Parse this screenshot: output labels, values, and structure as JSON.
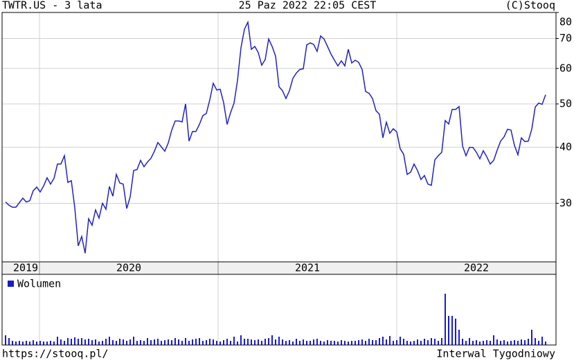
{
  "chart_data": [
    {
      "type": "line",
      "title": "TWTR.US - 3 lata",
      "subtitle": "25 Paz 2022 22:05 CEST",
      "source": "(C)Stooq",
      "categories": [
        null,
        null,
        null,
        null,
        null,
        null,
        null,
        null,
        null,
        null,
        null,
        null,
        null,
        null,
        null,
        null,
        null,
        null,
        null,
        null,
        null,
        null,
        null,
        null,
        null,
        null,
        null,
        null,
        null,
        null,
        null,
        null,
        null,
        null,
        null,
        null,
        null,
        null,
        null,
        null,
        null,
        null,
        null,
        null,
        null,
        null,
        null,
        null,
        null,
        null,
        null,
        null,
        null,
        null,
        null,
        null,
        null,
        null,
        null,
        null,
        null,
        null,
        null,
        null,
        null,
        null,
        null,
        null,
        null,
        null,
        null,
        null,
        null,
        null,
        null,
        null,
        null,
        null,
        null,
        null,
        null,
        null,
        null,
        null,
        null,
        null,
        null,
        null,
        null,
        null,
        null,
        null,
        null,
        null,
        null,
        null,
        null,
        null,
        null,
        null,
        null,
        null,
        null,
        null,
        null,
        null,
        null,
        null,
        null,
        null,
        null,
        null,
        null,
        null,
        null,
        null,
        null,
        null,
        null,
        null,
        null,
        null,
        null,
        null,
        null,
        null,
        null,
        null,
        null,
        null,
        null,
        null,
        null,
        null,
        null,
        null,
        null,
        null,
        null,
        null,
        null,
        null,
        null,
        null,
        null,
        null,
        null,
        null,
        null,
        null,
        null,
        null,
        null,
        null,
        null,
        null,
        null
      ],
      "x_labels": [
        "2019",
        "2020",
        "2021",
        "2022"
      ],
      "values": [
        30.2,
        29.7,
        29.4,
        29.4,
        30.1,
        30.8,
        30.2,
        30.4,
        32.0,
        32.6,
        31.8,
        32.8,
        34.2,
        33.1,
        34.1,
        36.7,
        36.7,
        38.3,
        33.4,
        33.7,
        29.3,
        24.1,
        25.3,
        23.2,
        27.7,
        26.8,
        29.0,
        27.8,
        30.0,
        29.1,
        32.7,
        31.1,
        34.8,
        33.3,
        33.1,
        29.2,
        31.0,
        35.5,
        35.7,
        37.4,
        36.2,
        37.1,
        37.8,
        39.2,
        41.0,
        40.1,
        39.2,
        40.9,
        43.7,
        45.8,
        45.8,
        45.6,
        50.0,
        41.3,
        43.4,
        43.4,
        45.0,
        47.1,
        47.6,
        51.1,
        55.6,
        53.7,
        53.9,
        50.3,
        45.0,
        47.8,
        50.2,
        56.4,
        66.7,
        73.4,
        76.1,
        66.2,
        67.2,
        65.1,
        61.0,
        62.8,
        69.8,
        67.2,
        63.9,
        54.6,
        53.5,
        51.4,
        53.5,
        57.0,
        58.6,
        59.7,
        59.9,
        67.7,
        68.4,
        67.9,
        65.5,
        70.9,
        69.8,
        67.2,
        64.6,
        62.6,
        60.8,
        62.4,
        60.8,
        66.2,
        61.7,
        62.6,
        61.9,
        59.7,
        53.3,
        52.8,
        51.4,
        48.3,
        47.4,
        42.0,
        45.5,
        43.0,
        44.0,
        43.3,
        39.7,
        38.6,
        34.8,
        35.2,
        36.7,
        35.5,
        33.9,
        34.6,
        33.1,
        32.9,
        37.5,
        38.3,
        39.0,
        45.9,
        45.1,
        48.6,
        48.6,
        49.3,
        40.3,
        38.3,
        40.0,
        40.0,
        39.0,
        37.7,
        39.3,
        38.1,
        36.7,
        37.4,
        39.4,
        41.3,
        42.2,
        43.9,
        43.7,
        40.4,
        38.5,
        42.0,
        41.2,
        41.3,
        43.9,
        49.2,
        50.2,
        49.9,
        52.4
      ],
      "color": "#2222bb",
      "log_scale": true,
      "grid": true,
      "ylim": [
        22.2,
        80
      ],
      "yticks": [
        30,
        40,
        50,
        60,
        70,
        80
      ]
    },
    {
      "type": "bar",
      "series": [
        {
          "name": "Wolumen",
          "color": "#1a1acc",
          "values": [
            14,
            10,
            6,
            5,
            6,
            5,
            6,
            5,
            7,
            5,
            6,
            5,
            5,
            6,
            5,
            12,
            8,
            6,
            10,
            9,
            11,
            9,
            10,
            8,
            9,
            7,
            8,
            5,
            6,
            9,
            12,
            7,
            6,
            9,
            8,
            6,
            8,
            12,
            6,
            7,
            6,
            10,
            7,
            8,
            9,
            6,
            7,
            8,
            7,
            10,
            8,
            6,
            10,
            6,
            8,
            9,
            10,
            6,
            7,
            9,
            8,
            6,
            5,
            7,
            9,
            6,
            12,
            5,
            14,
            9,
            9,
            8,
            7,
            8,
            6,
            9,
            10,
            14,
            8,
            12,
            8,
            6,
            7,
            5,
            9,
            6,
            8,
            6,
            6,
            8,
            9,
            6,
            5,
            7,
            6,
            6,
            5,
            7,
            6,
            5,
            6,
            6,
            7,
            8,
            6,
            9,
            7,
            7,
            10,
            12,
            8,
            13,
            6,
            7,
            12,
            9,
            6,
            5,
            6,
            8,
            6,
            9,
            7,
            10,
            9,
            6,
            10,
            74,
            42,
            42,
            38,
            22,
            9,
            6,
            10,
            6,
            7,
            5,
            6,
            7,
            6,
            14,
            8,
            6,
            7,
            5,
            6,
            7,
            6,
            8,
            7,
            9,
            22,
            10,
            6,
            12,
            5
          ]
        }
      ],
      "grid": true
    }
  ],
  "footer": {
    "url": "https://stooq.pl/",
    "interval": "Interwal Tygodniowy"
  }
}
